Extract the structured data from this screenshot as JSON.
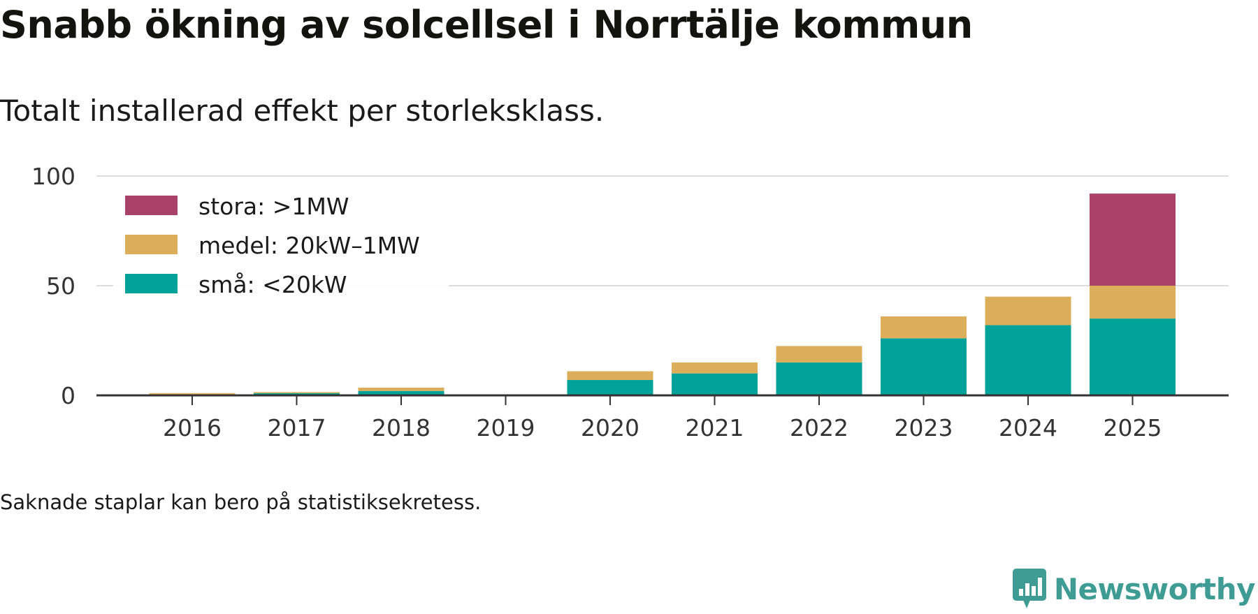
{
  "page": {
    "title": "Snabb ökning av solcellsel i Norrtälje kommun",
    "subtitle": "Totalt installerad effekt per storleksklass.",
    "note": "Saknade staplar kan bero på statistiksekretess.",
    "brand": {
      "name": "Newsworthy",
      "icon": "newsworthy-logo-icon",
      "color": "#3f9c94"
    }
  },
  "chart_data": {
    "type": "bar",
    "stacked": true,
    "title": "Snabb ökning av solcellsel i Norrtälje kommun",
    "subtitle": "Totalt installerad effekt per storleksklass.",
    "xlabel": "",
    "ylabel": "",
    "ylim": [
      0,
      100
    ],
    "yticks": [
      0,
      50,
      100
    ],
    "ytick_labels": [
      "0",
      "50",
      "100"
    ],
    "grid": true,
    "legend_position": "top-left",
    "categories": [
      "2016",
      "2017",
      "2018",
      "2019",
      "2020",
      "2021",
      "2022",
      "2023",
      "2024",
      "2025"
    ],
    "series": [
      {
        "name": "små: <20kW",
        "color": "#00a29a",
        "values": [
          0.5,
          1,
          2,
          0,
          7,
          10,
          15,
          26,
          32,
          35
        ]
      },
      {
        "name": "medel: 20kW–1MW",
        "color": "#dcae5a",
        "values": [
          0.5,
          0.5,
          1.5,
          0,
          4,
          5,
          7.5,
          10,
          13,
          15
        ]
      },
      {
        "name": "stora: >1MW",
        "color": "#a94169",
        "values": [
          0,
          0,
          0,
          0,
          0,
          0,
          0,
          0,
          0,
          42
        ]
      }
    ],
    "legend_order": [
      "stora: >1MW",
      "medel: 20kW–1MW",
      "små: <20kW"
    ]
  }
}
